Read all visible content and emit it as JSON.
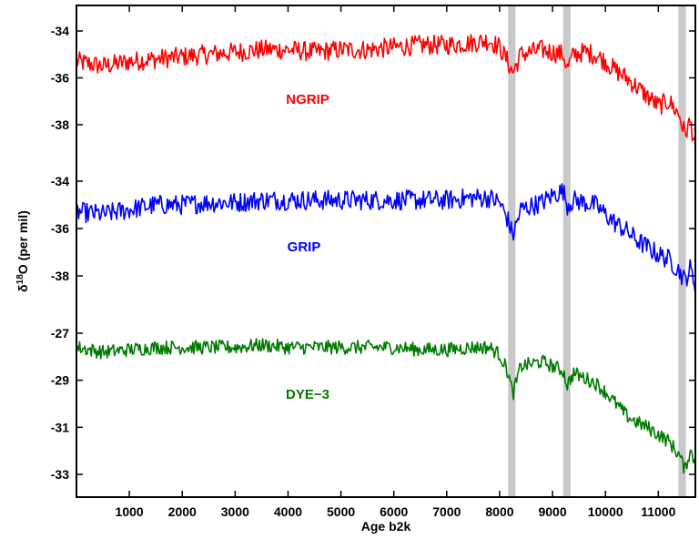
{
  "chart_data": {
    "type": "line",
    "xlabel": "Age b2k",
    "ylabel": {
      "base": "δ",
      "sup": "18",
      "rest": "O (per mil)"
    },
    "xlim": [
      0,
      11700
    ],
    "x_ticks": [
      1000,
      2000,
      3000,
      4000,
      5000,
      6000,
      7000,
      8000,
      9000,
      10000,
      11000
    ],
    "highlight_bands": [
      {
        "from": 8160,
        "to": 8300,
        "color": "#c8c8c8"
      },
      {
        "from": 9200,
        "to": 9340,
        "color": "#c8c8c8"
      },
      {
        "from": 11380,
        "to": 11520,
        "color": "#c8c8c8"
      }
    ],
    "series": [
      {
        "name": "NGRIP",
        "color": "#ff0000",
        "y_ticks": [
          -34,
          -36,
          -38
        ],
        "x": [
          0,
          500,
          1000,
          1500,
          2000,
          2500,
          3000,
          3500,
          4000,
          4500,
          5000,
          5500,
          6000,
          6500,
          7000,
          7500,
          7800,
          8000,
          8150,
          8250,
          8400,
          8800,
          9000,
          9200,
          9280,
          9400,
          9600,
          9800,
          10000,
          10200,
          10400,
          10600,
          10800,
          11000,
          11200,
          11400,
          11500,
          11600,
          11700
        ],
        "values": [
          -35.3,
          -35.5,
          -35.3,
          -35.2,
          -35.1,
          -35.0,
          -34.9,
          -34.8,
          -34.8,
          -34.9,
          -34.8,
          -34.8,
          -34.7,
          -34.6,
          -34.6,
          -34.5,
          -34.4,
          -34.7,
          -35.3,
          -35.8,
          -35.0,
          -34.8,
          -34.9,
          -35.0,
          -35.6,
          -35.0,
          -34.9,
          -35.0,
          -35.3,
          -35.7,
          -36.0,
          -36.4,
          -36.8,
          -37.2,
          -37.0,
          -37.6,
          -38.4,
          -37.9,
          -38.8
        ]
      },
      {
        "name": "GRIP",
        "color": "#0000ff",
        "y_ticks": [
          -34,
          -36,
          -38
        ],
        "x": [
          0,
          500,
          1000,
          1500,
          2000,
          2500,
          3000,
          3500,
          4000,
          4500,
          5000,
          5500,
          6000,
          6500,
          7000,
          7500,
          7800,
          8000,
          8150,
          8250,
          8400,
          8800,
          9000,
          9200,
          9280,
          9400,
          9600,
          9800,
          10000,
          10200,
          10400,
          10600,
          10800,
          11000,
          11200,
          11400,
          11500,
          11600,
          11700
        ],
        "values": [
          -35.3,
          -35.4,
          -35.2,
          -35.0,
          -35.0,
          -34.9,
          -34.9,
          -34.8,
          -34.8,
          -34.8,
          -34.8,
          -34.8,
          -34.8,
          -34.8,
          -34.8,
          -34.7,
          -34.7,
          -34.9,
          -35.6,
          -36.3,
          -35.2,
          -34.9,
          -34.6,
          -34.4,
          -35.0,
          -34.8,
          -34.9,
          -35.0,
          -35.4,
          -35.8,
          -36.1,
          -36.5,
          -36.8,
          -37.1,
          -37.3,
          -37.8,
          -38.2,
          -37.7,
          -38.4
        ]
      },
      {
        "name": "DYE−3",
        "color": "#007a00",
        "y_ticks": [
          -27,
          -29,
          -31,
          -33
        ],
        "x": [
          0,
          500,
          1000,
          1500,
          2000,
          2500,
          3000,
          3500,
          4000,
          4500,
          5000,
          5500,
          6000,
          6500,
          7000,
          7500,
          7800,
          8000,
          8150,
          8250,
          8400,
          8800,
          9000,
          9200,
          9280,
          9400,
          9600,
          9800,
          10000,
          10200,
          10400,
          10600,
          10800,
          11000,
          11200,
          11400,
          11500,
          11600,
          11700
        ],
        "values": [
          -27.6,
          -27.8,
          -27.7,
          -27.6,
          -27.6,
          -27.6,
          -27.6,
          -27.5,
          -27.6,
          -27.6,
          -27.6,
          -27.6,
          -27.6,
          -27.7,
          -27.7,
          -27.6,
          -27.6,
          -27.9,
          -28.6,
          -29.6,
          -28.4,
          -28.2,
          -28.4,
          -28.6,
          -29.2,
          -28.7,
          -28.9,
          -29.1,
          -29.5,
          -30.0,
          -30.5,
          -30.8,
          -31.0,
          -31.3,
          -31.6,
          -32.2,
          -32.8,
          -32.0,
          -32.5
        ]
      }
    ]
  }
}
